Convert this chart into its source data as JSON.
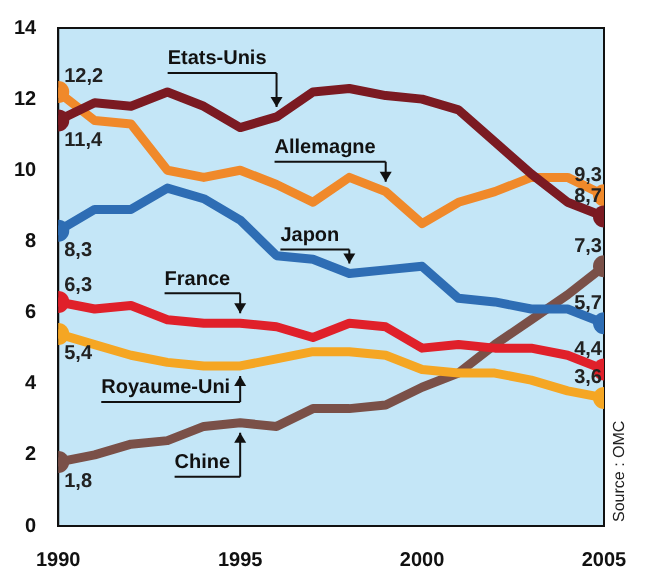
{
  "chart_data": {
    "type": "line",
    "x": [
      1990,
      1991,
      1992,
      1993,
      1994,
      1995,
      1996,
      1997,
      1998,
      1999,
      2000,
      2001,
      2002,
      2003,
      2004,
      2005
    ],
    "xlim": [
      1990,
      2005
    ],
    "xticks": [
      1990,
      1995,
      2000,
      2005
    ],
    "ylim": [
      0,
      14
    ],
    "yticks": [
      0,
      2,
      4,
      6,
      8,
      10,
      12,
      14
    ],
    "grid": false,
    "legend": false,
    "series": [
      {
        "name": "Etats-Unis",
        "color": "#7b1a22",
        "values": [
          11.4,
          11.9,
          11.8,
          12.2,
          11.8,
          11.2,
          11.5,
          12.2,
          12.3,
          12.1,
          12.0,
          11.7,
          10.8,
          9.9,
          9.1,
          8.7
        ],
        "value_labels": [
          "11,4",
          null,
          null,
          null,
          null,
          null,
          null,
          null,
          null,
          null,
          null,
          null,
          null,
          null,
          null,
          "8,7"
        ]
      },
      {
        "name": "Allemagne",
        "color": "#f0892a",
        "values": [
          12.2,
          11.4,
          11.3,
          10.0,
          9.8,
          10.0,
          9.6,
          9.1,
          9.8,
          9.4,
          8.5,
          9.1,
          9.4,
          9.8,
          9.8,
          9.3
        ],
        "value_labels": [
          "12,2",
          null,
          null,
          null,
          null,
          null,
          null,
          null,
          null,
          null,
          null,
          null,
          null,
          null,
          null,
          "9,3"
        ]
      },
      {
        "name": "Japon",
        "color": "#2e6db4",
        "values": [
          8.3,
          8.9,
          8.9,
          9.5,
          9.2,
          8.6,
          7.6,
          7.5,
          7.1,
          7.2,
          7.3,
          6.4,
          6.3,
          6.1,
          6.1,
          5.7
        ],
        "value_labels": [
          "8,3",
          null,
          null,
          null,
          null,
          null,
          null,
          null,
          null,
          null,
          null,
          null,
          null,
          null,
          null,
          "5,7"
        ]
      },
      {
        "name": "France",
        "color": "#e0202a",
        "values": [
          6.3,
          6.1,
          6.2,
          5.8,
          5.7,
          5.7,
          5.6,
          5.3,
          5.7,
          5.6,
          5.0,
          5.1,
          5.0,
          5.0,
          4.8,
          4.4
        ],
        "value_labels": [
          "6,3",
          null,
          null,
          null,
          null,
          null,
          null,
          null,
          null,
          null,
          null,
          null,
          null,
          null,
          null,
          "4,4"
        ]
      },
      {
        "name": "Royaume-Uni",
        "color": "#f5a623",
        "values": [
          5.4,
          5.1,
          4.8,
          4.6,
          4.5,
          4.5,
          4.7,
          4.9,
          4.9,
          4.8,
          4.4,
          4.3,
          4.3,
          4.1,
          3.8,
          3.6
        ],
        "value_labels": [
          "5,4",
          null,
          null,
          null,
          null,
          null,
          null,
          null,
          null,
          null,
          null,
          null,
          null,
          null,
          null,
          "3,6"
        ]
      },
      {
        "name": "Chine",
        "color": "#7a5048",
        "values": [
          1.8,
          2.0,
          2.3,
          2.4,
          2.8,
          2.9,
          2.8,
          3.3,
          3.3,
          3.4,
          3.9,
          4.3,
          5.1,
          5.8,
          6.5,
          7.3
        ],
        "value_labels": [
          "1,8",
          null,
          null,
          null,
          null,
          null,
          null,
          null,
          null,
          null,
          null,
          null,
          null,
          null,
          null,
          "7,3"
        ]
      }
    ],
    "annotations": [
      "Source : OMC"
    ]
  }
}
